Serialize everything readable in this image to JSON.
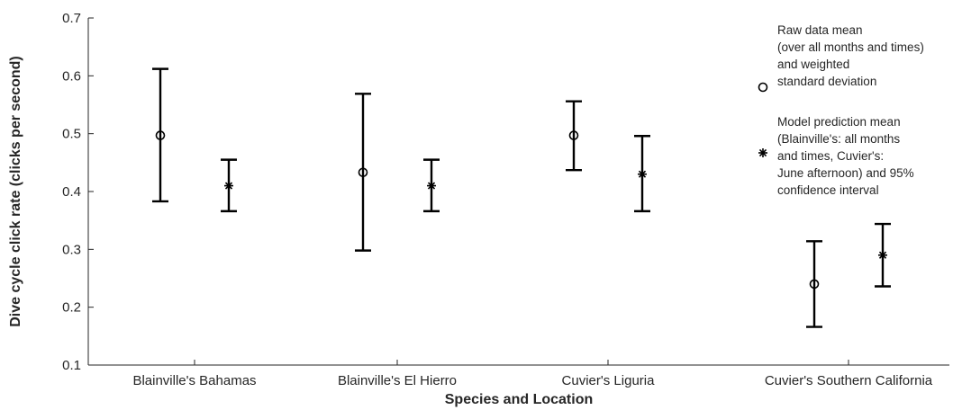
{
  "chart_data": {
    "type": "errorbar",
    "title": "",
    "xlabel": "Species and Location",
    "ylabel": "Dive cycle click rate (clicks per second)",
    "ylim": [
      0.1,
      0.7
    ],
    "yticks": [
      "0.1",
      "0.2",
      "0.3",
      "0.4",
      "0.5",
      "0.6",
      "0.7"
    ],
    "categories": [
      "Blainville's Bahamas",
      "Blainville's El Hierro",
      "Cuvier's Liguria",
      "Cuvier's Southern California"
    ],
    "grid": false,
    "legend_position": "top-right",
    "series": [
      {
        "name": "Raw data mean (over all months and times) and weighted standard deviation",
        "legend_lines": [
          "Raw data mean",
          "(over all months and times)",
          "and weighted",
          "standard deviation"
        ],
        "marker": "circle",
        "means": [
          0.497,
          0.433,
          0.497,
          0.24
        ],
        "lower": [
          0.383,
          0.298,
          0.437,
          0.166
        ],
        "upper": [
          0.612,
          0.569,
          0.556,
          0.314
        ]
      },
      {
        "name": "Model prediction mean (Blainville's: all months and times, Cuvier's: June afternoon) and 95% confidence interval",
        "legend_lines": [
          "Model prediction mean",
          "(Blainville's: all months",
          "and times, Cuvier's:",
          "June afternoon) and 95%",
          "confidence interval"
        ],
        "marker": "star",
        "means": [
          0.41,
          0.41,
          0.43,
          0.29
        ],
        "lower": [
          0.366,
          0.366,
          0.366,
          0.236
        ],
        "upper": [
          0.455,
          0.455,
          0.496,
          0.344
        ]
      }
    ]
  }
}
